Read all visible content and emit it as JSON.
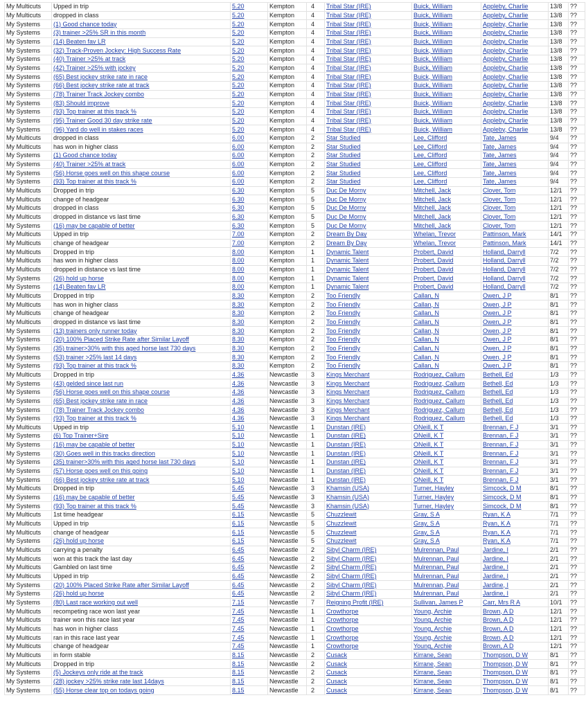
{
  "table": {
    "rows": [
      [
        "My Multicuts",
        "Upped in trip",
        "5.20",
        "Kempton",
        "4",
        "Tribal Star (IRE)",
        "Buick, William",
        "Appleby, Charlie",
        "13/8",
        "??"
      ],
      [
        "My Multicuts",
        "dropped in class",
        "5.20",
        "Kempton",
        "4",
        "Tribal Star (IRE)",
        "Buick, William",
        "Appleby, Charlie",
        "13/8",
        "??"
      ],
      [
        "My Systems",
        "(1) Good chance today",
        "5.20",
        "Kempton",
        "4",
        "Tribal Star (IRE)",
        "Buick, William",
        "Appleby, Charlie",
        "13/8",
        "??"
      ],
      [
        "My Systems",
        "(3) trainer >25% SR in this month",
        "5.20",
        "Kempton",
        "4",
        "Tribal Star (IRE)",
        "Buick, William",
        "Appleby, Charlie",
        "13/8",
        "??"
      ],
      [
        "My Systems",
        "(14) Beaten fav LR",
        "5.20",
        "Kempton",
        "4",
        "Tribal Star (IRE)",
        "Buick, William",
        "Appleby, Charlie",
        "13/8",
        "??"
      ],
      [
        "My Systems",
        "(32) Track-Proven Jockey: High Success Rate",
        "5.20",
        "Kempton",
        "4",
        "Tribal Star (IRE)",
        "Buick, William",
        "Appleby, Charlie",
        "13/8",
        "??"
      ],
      [
        "My Systems",
        "(40) Trainer >25% at track",
        "5.20",
        "Kempton",
        "4",
        "Tribal Star (IRE)",
        "Buick, William",
        "Appleby, Charlie",
        "13/8",
        "??"
      ],
      [
        "My Systems",
        "(42) Trainer >25% with jockey",
        "5.20",
        "Kempton",
        "4",
        "Tribal Star (IRE)",
        "Buick, William",
        "Appleby, Charlie",
        "13/8",
        "??"
      ],
      [
        "My Systems",
        "(65) Best jockey strike rate in race",
        "5.20",
        "Kempton",
        "4",
        "Tribal Star (IRE)",
        "Buick, William",
        "Appleby, Charlie",
        "13/8",
        "??"
      ],
      [
        "My Systems",
        "(66) Best jockey strike rate at track",
        "5.20",
        "Kempton",
        "4",
        "Tribal Star (IRE)",
        "Buick, William",
        "Appleby, Charlie",
        "13/8",
        "??"
      ],
      [
        "My Systems",
        "(78) Trainer Track Jockey combo",
        "5.20",
        "Kempton",
        "4",
        "Tribal Star (IRE)",
        "Buick, William",
        "Appleby, Charlie",
        "13/8",
        "??"
      ],
      [
        "My Systems",
        "(83) Should improve",
        "5.20",
        "Kempton",
        "4",
        "Tribal Star (IRE)",
        "Buick, William",
        "Appleby, Charlie",
        "13/8",
        "??"
      ],
      [
        "My Systems",
        "(93) Top trainer at this track %",
        "5.20",
        "Kempton",
        "4",
        "Tribal Star (IRE)",
        "Buick, William",
        "Appleby, Charlie",
        "13/8",
        "??"
      ],
      [
        "My Systems",
        "(95) Trainer Good 30 day strike rate",
        "5.20",
        "Kempton",
        "4",
        "Tribal Star (IRE)",
        "Buick, William",
        "Appleby, Charlie",
        "13/8",
        "??"
      ],
      [
        "My Systems",
        "(96) Yard do well in stakes races",
        "5.20",
        "Kempton",
        "4",
        "Tribal Star (IRE)",
        "Buick, William",
        "Appleby, Charlie",
        "13/8",
        "??"
      ],
      [
        "My Multicuts",
        "dropped in class",
        "6.00",
        "Kempton",
        "2",
        "Star Studied",
        "Lee, Clifford",
        "Tate, James",
        "9/4",
        "??"
      ],
      [
        "My Multicuts",
        "has won in higher class",
        "6.00",
        "Kempton",
        "2",
        "Star Studied",
        "Lee, Clifford",
        "Tate, James",
        "9/4",
        "??"
      ],
      [
        "My Systems",
        "(1) Good chance today",
        "6.00",
        "Kempton",
        "2",
        "Star Studied",
        "Lee, Clifford",
        "Tate, James",
        "9/4",
        "??"
      ],
      [
        "My Systems",
        "(40) Trainer >25% at track",
        "6.00",
        "Kempton",
        "2",
        "Star Studied",
        "Lee, Clifford",
        "Tate, James",
        "9/4",
        "??"
      ],
      [
        "My Systems",
        "(56) Horse goes well on this shape course",
        "6.00",
        "Kempton",
        "2",
        "Star Studied",
        "Lee, Clifford",
        "Tate, James",
        "9/4",
        "??"
      ],
      [
        "My Systems",
        "(93) Top trainer at this track %",
        "6.00",
        "Kempton",
        "2",
        "Star Studied",
        "Lee, Clifford",
        "Tate, James",
        "9/4",
        "??"
      ],
      [
        "My Multicuts",
        "Dropped in trip",
        "6.30",
        "Kempton",
        "5",
        "Duc De Morny",
        "Mitchell, Jack",
        "Clover, Tom",
        "12/1",
        "??"
      ],
      [
        "My Multicuts",
        "change of headgear",
        "6.30",
        "Kempton",
        "5",
        "Duc De Morny",
        "Mitchell, Jack",
        "Clover, Tom",
        "12/1",
        "??"
      ],
      [
        "My Multicuts",
        "dropped in class",
        "6.30",
        "Kempton",
        "5",
        "Duc De Morny",
        "Mitchell, Jack",
        "Clover, Tom",
        "12/1",
        "??"
      ],
      [
        "My Multicuts",
        "dropped in distance vs last time",
        "6.30",
        "Kempton",
        "5",
        "Duc De Morny",
        "Mitchell, Jack",
        "Clover, Tom",
        "12/1",
        "??"
      ],
      [
        "My Systems",
        "(16) may be capable of better",
        "6.30",
        "Kempton",
        "5",
        "Duc De Morny",
        "Mitchell, Jack",
        "Clover, Tom",
        "12/1",
        "??"
      ],
      [
        "My Multicuts",
        "Upped in trip",
        "7.00",
        "Kempton",
        "2",
        "Dream By Day",
        "Whelan, Trevor",
        "Pattinson, Mark",
        "14/1",
        "??"
      ],
      [
        "My Multicuts",
        "change of headgear",
        "7.00",
        "Kempton",
        "2",
        "Dream By Day",
        "Whelan, Trevor",
        "Pattinson, Mark",
        "14/1",
        "??"
      ],
      [
        "My Multicuts",
        "Dropped in trip",
        "8.00",
        "Kempton",
        "1",
        "Dynamic Talent",
        "Probert, David",
        "Holland, Darryll",
        "7/2",
        "??"
      ],
      [
        "My Multicuts",
        "has won in higher class",
        "8.00",
        "Kempton",
        "1",
        "Dynamic Talent",
        "Probert, David",
        "Holland, Darryll",
        "7/2",
        "??"
      ],
      [
        "My Multicuts",
        "dropped in distance vs last time",
        "8.00",
        "Kempton",
        "1",
        "Dynamic Talent",
        "Probert, David",
        "Holland, Darryll",
        "7/2",
        "??"
      ],
      [
        "My Systems",
        "(26) hold up horse",
        "8.00",
        "Kempton",
        "1",
        "Dynamic Talent",
        "Probert, David",
        "Holland, Darryll",
        "7/2",
        "??"
      ],
      [
        "My Systems",
        "(14) Beaten fav LR",
        "8.00",
        "Kempton",
        "1",
        "Dynamic Talent",
        "Probert, David",
        "Holland, Darryll",
        "7/2",
        "??"
      ],
      [
        "My Multicuts",
        "Dropped in trip",
        "8.30",
        "Kempton",
        "2",
        "Too Friendly",
        "Callan, N",
        "Owen, J P",
        "8/1",
        "??"
      ],
      [
        "My Multicuts",
        "has won in higher class",
        "8.30",
        "Kempton",
        "2",
        "Too Friendly",
        "Callan, N",
        "Owen, J P",
        "8/1",
        "??"
      ],
      [
        "My Multicuts",
        "change of headgear",
        "8.30",
        "Kempton",
        "2",
        "Too Friendly",
        "Callan, N",
        "Owen, J P",
        "8/1",
        "??"
      ],
      [
        "My Multicuts",
        "dropped in distance vs last time",
        "8.30",
        "Kempton",
        "2",
        "Too Friendly",
        "Callan, N",
        "Owen, J P",
        "8/1",
        "??"
      ],
      [
        "My Systems",
        "(13) trainers only runner today",
        "8.30",
        "Kempton",
        "2",
        "Too Friendly",
        "Callan, N",
        "Owen, J P",
        "8/1",
        "??"
      ],
      [
        "My Systems",
        "(20) 100% Placed Strike Rate after Similar Layoff",
        "8.30",
        "Kempton",
        "2",
        "Too Friendly",
        "Callan, N",
        "Owen, J P",
        "8/1",
        "??"
      ],
      [
        "My Systems",
        "(35) trainer>30% with this aged horse last 730 days",
        "8.30",
        "Kempton",
        "2",
        "Too Friendly",
        "Callan, N",
        "Owen, J P",
        "8/1",
        "??"
      ],
      [
        "My Systems",
        "(53) trainer >25% last 14 days",
        "8.30",
        "Kempton",
        "2",
        "Too Friendly",
        "Callan, N",
        "Owen, J P",
        "8/1",
        "??"
      ],
      [
        "My Systems",
        "(93) Top trainer at this track %",
        "8.30",
        "Kempton",
        "2",
        "Too Friendly",
        "Callan, N",
        "Owen, J P",
        "8/1",
        "??"
      ],
      [
        "My Multicuts",
        "Dropped in trip",
        "4.36",
        "Newcastle",
        "3",
        "Kings Merchant",
        "Rodriguez, Callum",
        "Bethell, Ed",
        "1/3",
        "??"
      ],
      [
        "My Systems",
        "(43) gelded since last run",
        "4.36",
        "Newcastle",
        "3",
        "Kings Merchant",
        "Rodriguez, Callum",
        "Bethell, Ed",
        "1/3",
        "??"
      ],
      [
        "My Systems",
        "(56) Horse goes well on this shape course",
        "4.36",
        "Newcastle",
        "3",
        "Kings Merchant",
        "Rodriguez, Callum",
        "Bethell, Ed",
        "1/3",
        "??"
      ],
      [
        "My Systems",
        "(65) Best jockey strike rate in race",
        "4.36",
        "Newcastle",
        "3",
        "Kings Merchant",
        "Rodriguez, Callum",
        "Bethell, Ed",
        "1/3",
        "??"
      ],
      [
        "My Systems",
        "(78) Trainer Track Jockey combo",
        "4.36",
        "Newcastle",
        "3",
        "Kings Merchant",
        "Rodriguez, Callum",
        "Bethell, Ed",
        "1/3",
        "??"
      ],
      [
        "My Systems",
        "(93) Top trainer at this track %",
        "4.36",
        "Newcastle",
        "3",
        "Kings Merchant",
        "Rodriguez, Callum",
        "Bethell, Ed",
        "1/3",
        "??"
      ],
      [
        "My Multicuts",
        "Upped in trip",
        "5.10",
        "Newcastle",
        "1",
        "Dunstan (IRE)",
        "ONeill, K T",
        "Brennan, F J",
        "3/1",
        "??"
      ],
      [
        "My Systems",
        "(6) Top Trainer+Sire",
        "5.10",
        "Newcastle",
        "1",
        "Dunstan (IRE)",
        "ONeill, K T",
        "Brennan, F J",
        "3/1",
        "??"
      ],
      [
        "My Systems",
        "(16) may be capable of better",
        "5.10",
        "Newcastle",
        "1",
        "Dunstan (IRE)",
        "ONeill, K T",
        "Brennan, F J",
        "3/1",
        "??"
      ],
      [
        "My Systems",
        "(30) Goes well in this tracks direction",
        "5.10",
        "Newcastle",
        "1",
        "Dunstan (IRE)",
        "ONeill, K T",
        "Brennan, F J",
        "3/1",
        "??"
      ],
      [
        "My Systems",
        "(35) trainer>30% with this aged horse last 730 days",
        "5.10",
        "Newcastle",
        "1",
        "Dunstan (IRE)",
        "ONeill, K T",
        "Brennan, F J",
        "3/1",
        "??"
      ],
      [
        "My Systems",
        "(57) Horse goes well on this going",
        "5.10",
        "Newcastle",
        "1",
        "Dunstan (IRE)",
        "ONeill, K T",
        "Brennan, F J",
        "3/1",
        "??"
      ],
      [
        "My Systems",
        "(66) Best jockey strike rate at track",
        "5.10",
        "Newcastle",
        "1",
        "Dunstan (IRE)",
        "ONeill, K T",
        "Brennan, F J",
        "3/1",
        "??"
      ],
      [
        "My Multicuts",
        "Dropped in trip",
        "5.45",
        "Newcastle",
        "3",
        "Khamsin (USA)",
        "Turner, Hayley",
        "Simcock, D M",
        "8/1",
        "??"
      ],
      [
        "My Systems",
        "(16) may be capable of better",
        "5.45",
        "Newcastle",
        "3",
        "Khamsin (USA)",
        "Turner, Hayley",
        "Simcock, D M",
        "8/1",
        "??"
      ],
      [
        "My Systems",
        "(93) Top trainer at this track %",
        "5.45",
        "Newcastle",
        "3",
        "Khamsin (USA)",
        "Turner, Hayley",
        "Simcock, D M",
        "8/1",
        "??"
      ],
      [
        "My Multicuts",
        "1st time headgear",
        "6.15",
        "Newcastle",
        "5",
        "Chuzzlewit",
        "Gray, S A",
        "Ryan, K A",
        "7/1",
        "??"
      ],
      [
        "My Multicuts",
        "Upped in trip",
        "6.15",
        "Newcastle",
        "5",
        "Chuzzlewit",
        "Gray, S A",
        "Ryan, K A",
        "7/1",
        "??"
      ],
      [
        "My Multicuts",
        "change of headgear",
        "6.15",
        "Newcastle",
        "5",
        "Chuzzlewit",
        "Gray, S A",
        "Ryan, K A",
        "7/1",
        "??"
      ],
      [
        "My Systems",
        "(26) hold up horse",
        "6.15",
        "Newcastle",
        "5",
        "Chuzzlewit",
        "Gray, S A",
        "Ryan, K A",
        "7/1",
        "??"
      ],
      [
        "My Multicuts",
        "carrying a penalty",
        "6.45",
        "Newcastle",
        "2",
        "Sibyl Charm (IRE)",
        "Mulrennan, Paul",
        "Jardine, I",
        "2/1",
        "??"
      ],
      [
        "My Multicuts",
        "won at this track the last day",
        "6.45",
        "Newcastle",
        "2",
        "Sibyl Charm (IRE)",
        "Mulrennan, Paul",
        "Jardine, I",
        "2/1",
        "??"
      ],
      [
        "My Multicuts",
        "Gambled on last time",
        "6.45",
        "Newcastle",
        "2",
        "Sibyl Charm (IRE)",
        "Mulrennan, Paul",
        "Jardine, I",
        "2/1",
        "??"
      ],
      [
        "My Multicuts",
        "Upped in trip",
        "6.45",
        "Newcastle",
        "2",
        "Sibyl Charm (IRE)",
        "Mulrennan, Paul",
        "Jardine, I",
        "2/1",
        "??"
      ],
      [
        "My Systems",
        "(20) 100% Placed Strike Rate after Similar Layoff",
        "6.45",
        "Newcastle",
        "2",
        "Sibyl Charm (IRE)",
        "Mulrennan, Paul",
        "Jardine, I",
        "2/1",
        "??"
      ],
      [
        "My Systems",
        "(26) hold up horse",
        "6.45",
        "Newcastle",
        "2",
        "Sibyl Charm (IRE)",
        "Mulrennan, Paul",
        "Jardine, I",
        "2/1",
        "??"
      ],
      [
        "My Systems",
        "(80) Last race working out well",
        "7.15",
        "Newcastle",
        "7",
        "Reigning Profit (IRE)",
        "Sullivan, James P",
        "Carr, Mrs R A",
        "10/1",
        "??"
      ],
      [
        "My Multicuts",
        "recompeting race won last year",
        "7.45",
        "Newcastle",
        "1",
        "Crowthorpe",
        "Young, Archie",
        "Brown, A D",
        "12/1",
        "??"
      ],
      [
        "My Multicuts",
        "trainer won this race last year",
        "7.45",
        "Newcastle",
        "1",
        "Crowthorpe",
        "Young, Archie",
        "Brown, A D",
        "12/1",
        "??"
      ],
      [
        "My Multicuts",
        "has won in higher class",
        "7.45",
        "Newcastle",
        "1",
        "Crowthorpe",
        "Young, Archie",
        "Brown, A D",
        "12/1",
        "??"
      ],
      [
        "My Multicuts",
        "ran in this race last year",
        "7.45",
        "Newcastle",
        "1",
        "Crowthorpe",
        "Young, Archie",
        "Brown, A D",
        "12/1",
        "??"
      ],
      [
        "My Multicuts",
        "change of headgear",
        "7.45",
        "Newcastle",
        "1",
        "Crowthorpe",
        "Young, Archie",
        "Brown, A D",
        "12/1",
        "??"
      ],
      [
        "My Multicuts",
        "in form stable",
        "8.15",
        "Newcastle",
        "2",
        "Cusack",
        "Kirrane, Sean",
        "Thompson, D W",
        "8/1",
        "??"
      ],
      [
        "My Multicuts",
        "Dropped in trip",
        "8.15",
        "Newcastle",
        "2",
        "Cusack",
        "Kirrane, Sean",
        "Thompson, D W",
        "8/1",
        "??"
      ],
      [
        "My Systems",
        "(5) Jockeys only ride at the track",
        "8.15",
        "Newcastle",
        "2",
        "Cusack",
        "Kirrane, Sean",
        "Thompson, D W",
        "8/1",
        "??"
      ],
      [
        "My Systems",
        "(28) jockey >25% strike rate last 14days",
        "8.15",
        "Newcastle",
        "2",
        "Cusack",
        "Kirrane, Sean",
        "Thompson, D W",
        "8/1",
        "??"
      ],
      [
        "My Systems",
        "(55) Horse clear top on todays going",
        "8.15",
        "Newcastle",
        "2",
        "Cusack",
        "Kirrane, Sean",
        "Thompson, D W",
        "8/1",
        "??"
      ]
    ]
  }
}
